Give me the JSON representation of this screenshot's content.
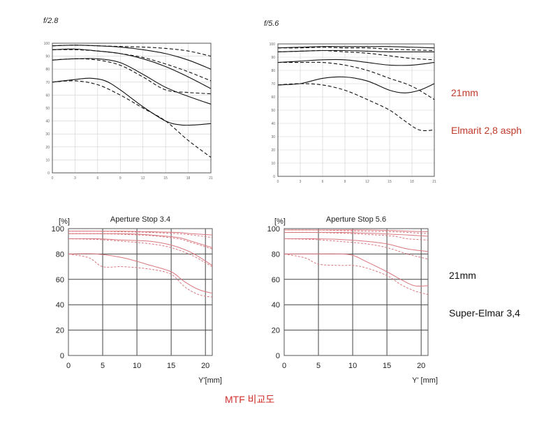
{
  "labels": {
    "elmarit_title": "21mm",
    "elmarit_name": "Elmarit 2,8 asph",
    "superelmar_title": "21mm",
    "superelmar_name": "Super-Elmar 3,4",
    "caption": "MTF 비교도"
  },
  "colors": {
    "elmarit_lines": "#111111",
    "superelmar_lines": "#d9777f",
    "elmarit_label": "#c0392b",
    "caption": "#d0312d"
  },
  "chart_data": [
    {
      "type": "line",
      "title": "f/2.8",
      "xlabel": "",
      "ylabel": "",
      "xlim": [
        0,
        21
      ],
      "ylim": [
        0,
        100
      ],
      "x_ticks": [
        0,
        3,
        6,
        9,
        12,
        15,
        18,
        21
      ],
      "y_ticks": [
        0,
        10,
        20,
        30,
        40,
        50,
        60,
        70,
        80,
        90,
        100
      ],
      "grid": true,
      "series": [
        {
          "style": "solid",
          "x": [
            0,
            3,
            6,
            9,
            12,
            15,
            18,
            21
          ],
          "y": [
            98,
            98.5,
            98,
            97,
            95,
            92,
            87,
            80
          ]
        },
        {
          "style": "dashed",
          "x": [
            0,
            3,
            6,
            9,
            12,
            15,
            18,
            21
          ],
          "y": [
            98,
            98.5,
            98,
            97.5,
            97,
            96,
            94,
            90
          ]
        },
        {
          "style": "solid",
          "x": [
            0,
            3,
            6,
            9,
            12,
            15,
            18,
            21
          ],
          "y": [
            95,
            95.5,
            94,
            92,
            88,
            82,
            74,
            65
          ]
        },
        {
          "style": "dashed",
          "x": [
            0,
            3,
            6,
            9,
            12,
            15,
            18,
            21
          ],
          "y": [
            95,
            95,
            94,
            92,
            89,
            84,
            78,
            71
          ]
        },
        {
          "style": "solid",
          "x": [
            0,
            3,
            6,
            9,
            12,
            15,
            18,
            21
          ],
          "y": [
            87,
            88,
            88,
            85,
            76,
            66,
            59,
            53
          ]
        },
        {
          "style": "dashed",
          "x": [
            0,
            3,
            6,
            9,
            12,
            15,
            18,
            21
          ],
          "y": [
            87,
            88,
            87,
            83,
            74,
            64,
            62,
            61
          ]
        },
        {
          "style": "solid",
          "x": [
            0,
            3,
            5,
            7,
            9,
            12,
            15,
            17,
            19,
            21
          ],
          "y": [
            70,
            72,
            73,
            71,
            64,
            51,
            40,
            37,
            37,
            38
          ]
        },
        {
          "style": "dashed",
          "x": [
            0,
            3,
            6,
            9,
            12,
            15,
            18,
            21
          ],
          "y": [
            70,
            71,
            68,
            60,
            50,
            40,
            25,
            12
          ]
        }
      ]
    },
    {
      "type": "line",
      "title": "f/5.6",
      "xlabel": "",
      "ylabel": "",
      "xlim": [
        0,
        21
      ],
      "ylim": [
        0,
        100
      ],
      "x_ticks": [
        0,
        3,
        6,
        9,
        12,
        15,
        18,
        21
      ],
      "y_ticks": [
        0,
        10,
        20,
        30,
        40,
        50,
        60,
        70,
        80,
        90,
        100
      ],
      "grid": true,
      "series": [
        {
          "style": "solid",
          "x": [
            0,
            3,
            6,
            9,
            12,
            15,
            18,
            21
          ],
          "y": [
            97,
            97.5,
            98,
            98,
            98,
            98,
            97.5,
            97
          ]
        },
        {
          "style": "dashed",
          "x": [
            0,
            3,
            6,
            9,
            12,
            15,
            18,
            21
          ],
          "y": [
            97,
            97,
            97.5,
            97,
            97,
            96,
            95.5,
            95
          ]
        },
        {
          "style": "solid",
          "x": [
            0,
            3,
            6,
            9,
            12,
            15,
            18,
            21
          ],
          "y": [
            94,
            94.5,
            95,
            95,
            94.5,
            94,
            94,
            94
          ]
        },
        {
          "style": "dashed",
          "x": [
            0,
            3,
            6,
            9,
            12,
            15,
            18,
            21
          ],
          "y": [
            94,
            94.5,
            95,
            94,
            93,
            91,
            89,
            88
          ]
        },
        {
          "style": "solid",
          "x": [
            0,
            3,
            6,
            9,
            12,
            15,
            18,
            21
          ],
          "y": [
            86,
            87,
            88,
            88,
            86,
            84,
            84,
            86
          ]
        },
        {
          "style": "dashed",
          "x": [
            0,
            3,
            6,
            9,
            12,
            15,
            18,
            21
          ],
          "y": [
            86,
            86,
            86,
            84,
            80,
            74,
            68,
            58
          ]
        },
        {
          "style": "solid",
          "x": [
            0,
            3,
            6,
            9,
            12,
            15,
            17,
            19,
            21
          ],
          "y": [
            69,
            70,
            74,
            75,
            72,
            65,
            63,
            65,
            70
          ]
        },
        {
          "style": "dashed",
          "x": [
            0,
            3,
            6,
            9,
            12,
            15,
            17,
            19,
            21
          ],
          "y": [
            69,
            70,
            69,
            65,
            58,
            50,
            42,
            35,
            35
          ]
        }
      ]
    },
    {
      "type": "line",
      "title": "Aperture Stop 3.4",
      "xlabel": "Y'[mm]",
      "ylabel": "[%]",
      "xlim": [
        0,
        21
      ],
      "ylim": [
        0,
        100
      ],
      "x_ticks": [
        0,
        5,
        10,
        15,
        20
      ],
      "y_ticks": [
        0,
        20,
        40,
        60,
        80,
        100
      ],
      "grid": true,
      "series": [
        {
          "style": "solid",
          "x": [
            0,
            4,
            8,
            12,
            16,
            18,
            21
          ],
          "y": [
            98,
            98,
            98,
            97.5,
            97,
            96,
            95
          ]
        },
        {
          "style": "dashed",
          "x": [
            0,
            4,
            8,
            12,
            16,
            18,
            21
          ],
          "y": [
            98,
            98,
            97.5,
            97,
            96,
            95,
            93
          ]
        },
        {
          "style": "solid",
          "x": [
            0,
            4,
            8,
            12,
            16,
            18,
            21
          ],
          "y": [
            96,
            96,
            96,
            95,
            93,
            90,
            85
          ]
        },
        {
          "style": "dashed",
          "x": [
            0,
            4,
            8,
            12,
            16,
            18,
            21
          ],
          "y": [
            96,
            96,
            95.5,
            94.5,
            92,
            89,
            84
          ]
        },
        {
          "style": "solid",
          "x": [
            0,
            4,
            8,
            12,
            15,
            18,
            21
          ],
          "y": [
            92,
            92,
            91,
            90,
            87,
            81,
            71
          ]
        },
        {
          "style": "dashed",
          "x": [
            0,
            4,
            8,
            12,
            15,
            18,
            21
          ],
          "y": [
            92,
            91.5,
            90,
            88,
            85,
            79,
            70
          ]
        },
        {
          "style": "solid",
          "x": [
            0,
            4,
            8,
            12,
            15,
            17,
            19,
            21
          ],
          "y": [
            80,
            80,
            77,
            71,
            66,
            58,
            52,
            49
          ]
        },
        {
          "style": "dashed",
          "x": [
            0,
            3,
            5,
            8,
            12,
            15,
            17,
            19,
            21
          ],
          "y": [
            80,
            77,
            70,
            70,
            68,
            64,
            54,
            48,
            46
          ]
        }
      ]
    },
    {
      "type": "line",
      "title": "Aperture Stop 5.6",
      "xlabel": "Y' [mm]",
      "ylabel": "[%]",
      "xlim": [
        0,
        21
      ],
      "ylim": [
        0,
        100
      ],
      "x_ticks": [
        0,
        5,
        10,
        15,
        20
      ],
      "y_ticks": [
        0,
        20,
        40,
        60,
        80,
        100
      ],
      "grid": true,
      "series": [
        {
          "style": "solid",
          "x": [
            0,
            4,
            8,
            12,
            16,
            18,
            21
          ],
          "y": [
            99,
            99,
            99,
            99,
            98.5,
            98,
            97.5
          ]
        },
        {
          "style": "dashed",
          "x": [
            0,
            4,
            8,
            12,
            16,
            18,
            21
          ],
          "y": [
            99,
            99,
            98.5,
            98,
            97.5,
            97,
            96
          ]
        },
        {
          "style": "solid",
          "x": [
            0,
            4,
            8,
            12,
            16,
            18,
            21
          ],
          "y": [
            97,
            97,
            97,
            96.5,
            95.5,
            95,
            94
          ]
        },
        {
          "style": "dashed",
          "x": [
            0,
            4,
            8,
            12,
            16,
            18,
            21
          ],
          "y": [
            97,
            97,
            96.5,
            95.5,
            94,
            92,
            91
          ]
        },
        {
          "style": "solid",
          "x": [
            0,
            4,
            8,
            12,
            15,
            18,
            21
          ],
          "y": [
            92,
            92,
            91.5,
            90,
            88,
            84,
            82
          ]
        },
        {
          "style": "dashed",
          "x": [
            0,
            4,
            8,
            12,
            15,
            18,
            21
          ],
          "y": [
            92,
            91.5,
            90,
            88,
            85,
            80,
            76
          ]
        },
        {
          "style": "solid",
          "x": [
            0,
            4,
            8,
            10,
            12,
            15,
            17,
            19,
            21
          ],
          "y": [
            80,
            80,
            80,
            79,
            74,
            66,
            60,
            55,
            55
          ]
        },
        {
          "style": "dashed",
          "x": [
            0,
            3,
            5,
            8,
            10,
            12,
            15,
            17,
            19,
            21
          ],
          "y": [
            80,
            77,
            72,
            71,
            71,
            69,
            63,
            56,
            51,
            48
          ]
        }
      ]
    }
  ]
}
